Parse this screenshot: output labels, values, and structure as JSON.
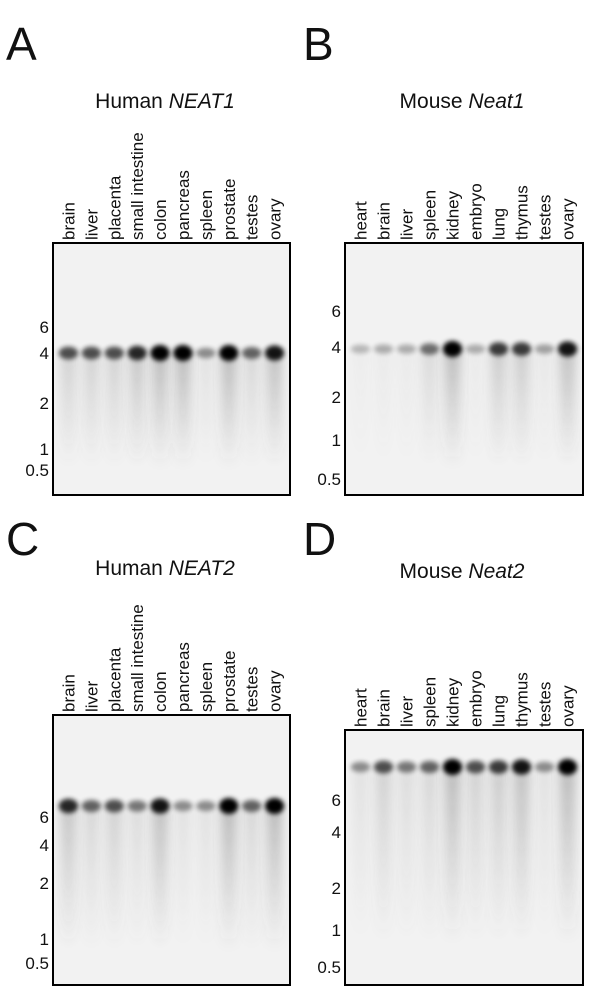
{
  "panels": [
    {
      "letter": "A",
      "title": {
        "species": "Human",
        "gene": "NEAT1"
      },
      "lanes": [
        "brain",
        "liver",
        "placenta",
        "small intestine",
        "colon",
        "pancreas",
        "spleen",
        "prostate",
        "testes",
        "ovary"
      ],
      "markers": [
        "6",
        "4",
        "2",
        "1",
        "0.5"
      ]
    },
    {
      "letter": "B",
      "title": {
        "species": "Mouse",
        "gene": "Neat1"
      },
      "lanes": [
        "heart",
        "brain",
        "liver",
        "spleen",
        "kidney",
        "embryo",
        "lung",
        "thymus",
        "testes",
        "ovary"
      ],
      "markers": [
        "6",
        "4",
        "2",
        "1",
        "0.5"
      ]
    },
    {
      "letter": "C",
      "title": {
        "species": "Human",
        "gene": "NEAT2"
      },
      "lanes": [
        "brain",
        "liver",
        "placenta",
        "small intestine",
        "colon",
        "pancreas",
        "spleen",
        "prostate",
        "testes",
        "ovary"
      ],
      "markers": [
        "6",
        "4",
        "2",
        "1",
        "0.5"
      ]
    },
    {
      "letter": "D",
      "title": {
        "species": "Mouse",
        "gene": "Neat2"
      },
      "lanes": [
        "heart",
        "brain",
        "liver",
        "spleen",
        "kidney",
        "embryo",
        "lung",
        "thymus",
        "testes",
        "ovary"
      ],
      "markers": [
        "6",
        "4",
        "2",
        "1",
        "0.5"
      ]
    }
  ]
}
